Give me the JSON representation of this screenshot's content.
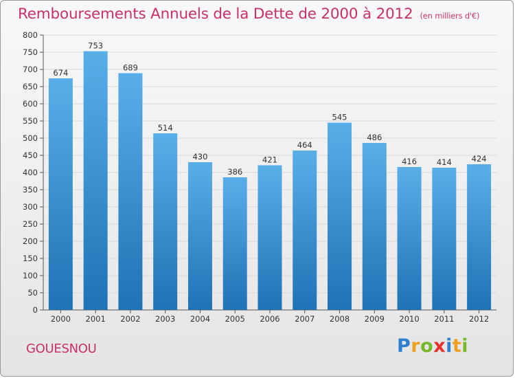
{
  "header": {
    "title": "Remboursements Annuels de la Dette de 2000 à 2012",
    "subtitle": "(en milliers d'€)"
  },
  "footer": {
    "commune": "GOUESNOU",
    "logo_letters": [
      "P",
      "r",
      "o",
      "x",
      "i",
      "t",
      "i"
    ]
  },
  "colors": {
    "title": "#c9306b",
    "bar_light": "#5aaee8",
    "bar_dark": "#1f72b4",
    "grid": "#d9d9d9"
  },
  "chart_data": {
    "type": "bar",
    "title": "Remboursements Annuels de la Dette de 2000 à 2012",
    "subtitle": "(en milliers d'€)",
    "categories": [
      "2000",
      "2001",
      "2002",
      "2003",
      "2004",
      "2005",
      "2006",
      "2007",
      "2008",
      "2009",
      "2010",
      "2011",
      "2012"
    ],
    "values": [
      674,
      753,
      689,
      514,
      430,
      386,
      421,
      464,
      545,
      486,
      416,
      414,
      424
    ],
    "ylim": [
      0,
      800
    ],
    "yticks": [
      0,
      50,
      100,
      150,
      200,
      250,
      300,
      350,
      400,
      450,
      500,
      550,
      600,
      650,
      700,
      750,
      800
    ],
    "grid": true,
    "data_labels": true
  }
}
